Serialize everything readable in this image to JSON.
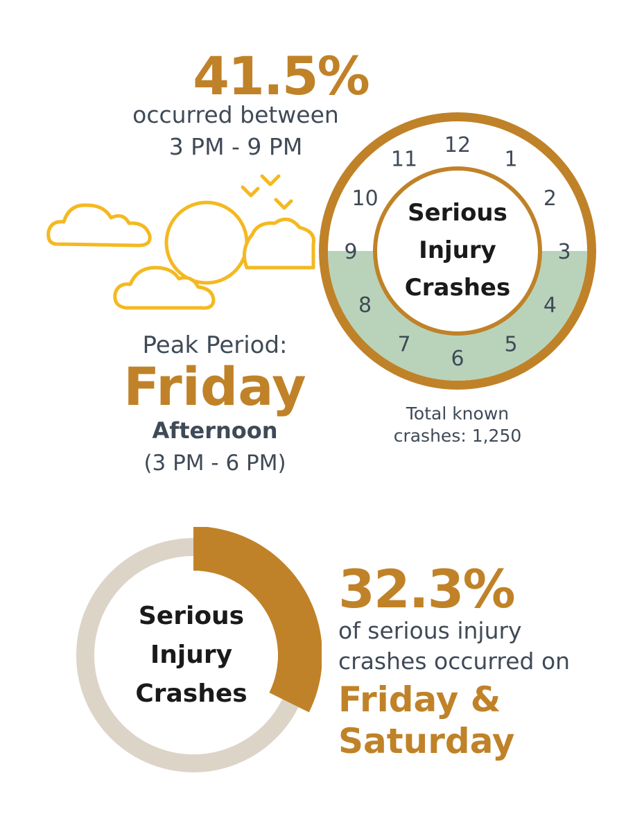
{
  "top_stat": {
    "value": "41.5%",
    "line1": "occurred between",
    "line2": "3 PM - 9 PM"
  },
  "peak": {
    "label": "Peak Period:",
    "day": "Friday",
    "part": "Afternoon",
    "range": "(3 PM - 6 PM)"
  },
  "clock": {
    "center_lines": [
      "Serious",
      "Injury",
      "Crashes"
    ],
    "hours": [
      "12",
      "1",
      "2",
      "3",
      "4",
      "5",
      "6",
      "7",
      "8",
      "9",
      "10",
      "11"
    ],
    "highlight_from_hour": 3,
    "highlight_to_hour": 9,
    "total_line1": "Total known",
    "total_line2": "crashes: 1,250"
  },
  "bottom_stat": {
    "value": "32.3%",
    "line1": "of serious injury",
    "line2": "crashes occurred on",
    "day1": "Friday &",
    "day2": "Saturday"
  },
  "chart_data": [
    {
      "type": "pie",
      "center_label": [
        "Serious",
        "Injury",
        "Crashes"
      ],
      "highlight_hours": [
        3,
        9
      ],
      "percent": 41.5
    },
    {
      "type": "pie",
      "center_label": [
        "Serious",
        "Injury",
        "Crashes"
      ],
      "values": [
        32.3,
        67.7
      ]
    }
  ],
  "colors": {
    "gold": "#c08228",
    "slate": "#3f4a57",
    "green": "#b9d3ba",
    "light_ring": "#ddd4c8",
    "cloud_yellow": "#f4b921"
  }
}
